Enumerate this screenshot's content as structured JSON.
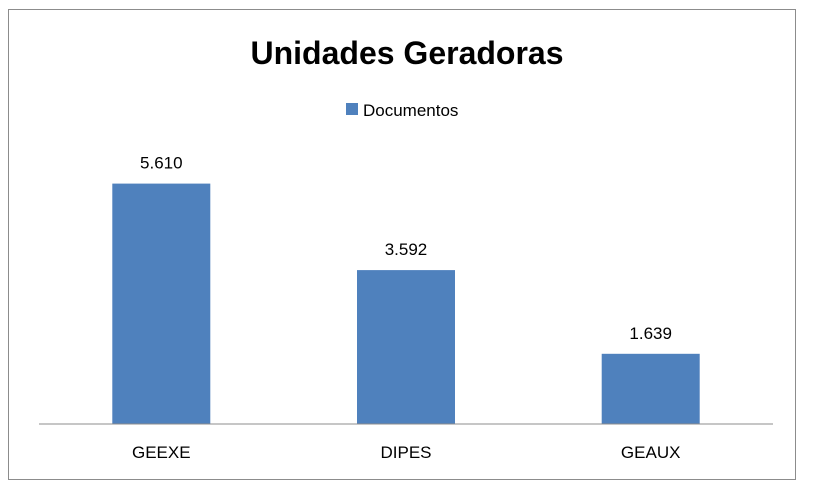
{
  "chart_data": {
    "type": "bar",
    "title": "Unidades Geradoras",
    "xlabel": "",
    "ylabel": "",
    "categories": [
      "GEEXE",
      "DIPES",
      "GEAUX"
    ],
    "series": [
      {
        "name": "Documentos",
        "values": [
          5610,
          3592,
          1639
        ],
        "labels": [
          "5.610",
          "3.592",
          "1.639"
        ],
        "color": "#4f81bd"
      }
    ],
    "ylim": [
      0,
      7000
    ],
    "grid": false,
    "legend": "top-center"
  }
}
